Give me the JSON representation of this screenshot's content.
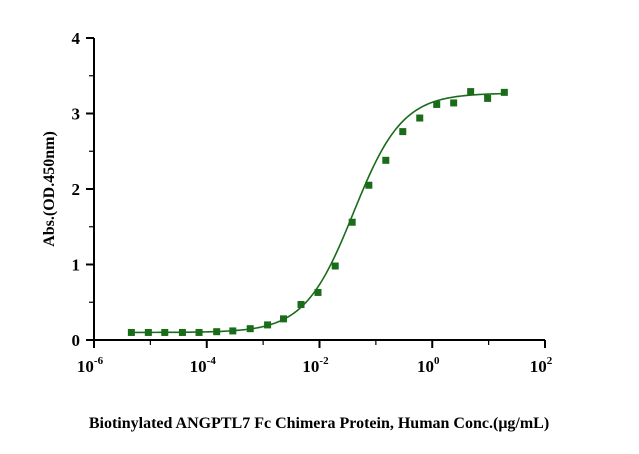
{
  "chart_data": {
    "type": "scatter",
    "title": "",
    "xlabel": "Biotinylated ANGPTL7 Fc Chimera Protein, Human Conc.(μg/mL)",
    "ylabel": "Abs.(OD.450nm)",
    "xscale": "log",
    "xlim": [
      1e-06,
      100
    ],
    "ylim": [
      0,
      4
    ],
    "x_ticks": [
      {
        "base": "10",
        "exp": "-6"
      },
      {
        "base": "10",
        "exp": "-4"
      },
      {
        "base": "10",
        "exp": "-2"
      },
      {
        "base": "10",
        "exp": "0"
      },
      {
        "base": "10",
        "exp": "2"
      }
    ],
    "y_ticks": [
      "0",
      "1",
      "2",
      "3",
      "4"
    ],
    "grid": false,
    "legend": "none",
    "colors": {
      "series": "#1a6b1a",
      "axis": "#000000"
    },
    "series": [
      {
        "marker": "square",
        "fit": "4PL sigmoid",
        "x": [
          4.6e-06,
          9.2e-06,
          1.8e-05,
          3.7e-05,
          7.3e-05,
          0.00015,
          0.00029,
          0.00059,
          0.0012,
          0.0023,
          0.0047,
          0.0094,
          0.019,
          0.038,
          0.075,
          0.15,
          0.3,
          0.6,
          1.2,
          2.4,
          4.8,
          9.6,
          19
        ],
        "y": [
          0.1,
          0.1,
          0.1,
          0.1,
          0.1,
          0.11,
          0.12,
          0.15,
          0.2,
          0.28,
          0.47,
          0.63,
          0.98,
          1.56,
          2.05,
          2.38,
          2.76,
          2.94,
          3.12,
          3.14,
          3.29,
          3.2,
          3.28
        ]
      }
    ]
  }
}
